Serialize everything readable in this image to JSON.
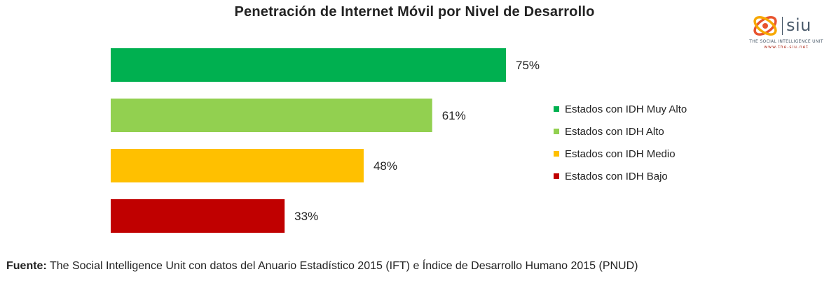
{
  "chart_data": {
    "type": "bar",
    "orientation": "horizontal",
    "title": "Penetración de Internet Móvil por Nivel de Desarrollo",
    "categories": [
      "Estados con IDH Muy Alto",
      "Estados con IDH Alto",
      "Estados con IDH Medio",
      "Estados con IDH Bajo"
    ],
    "values": [
      75,
      61,
      48,
      33
    ],
    "value_labels": [
      "75%",
      "61%",
      "48%",
      "33%"
    ],
    "colors": [
      "#00b050",
      "#92d050",
      "#ffc000",
      "#c00000"
    ],
    "xlim": [
      0,
      100
    ],
    "legend_position": "right",
    "grid": false
  },
  "logo": {
    "wordmark": "siu",
    "subtitle": "THE SOCIAL INTELLIGENCE UNIT",
    "url": "www.the-siu.net",
    "colors": [
      "#e8542f",
      "#f7a800"
    ]
  },
  "source": {
    "prefix": "Fuente:",
    "text": " The Social Intelligence Unit con datos del Anuario Estadístico 2015 (IFT) e Índice de Desarrollo Humano 2015 (PNUD)"
  }
}
